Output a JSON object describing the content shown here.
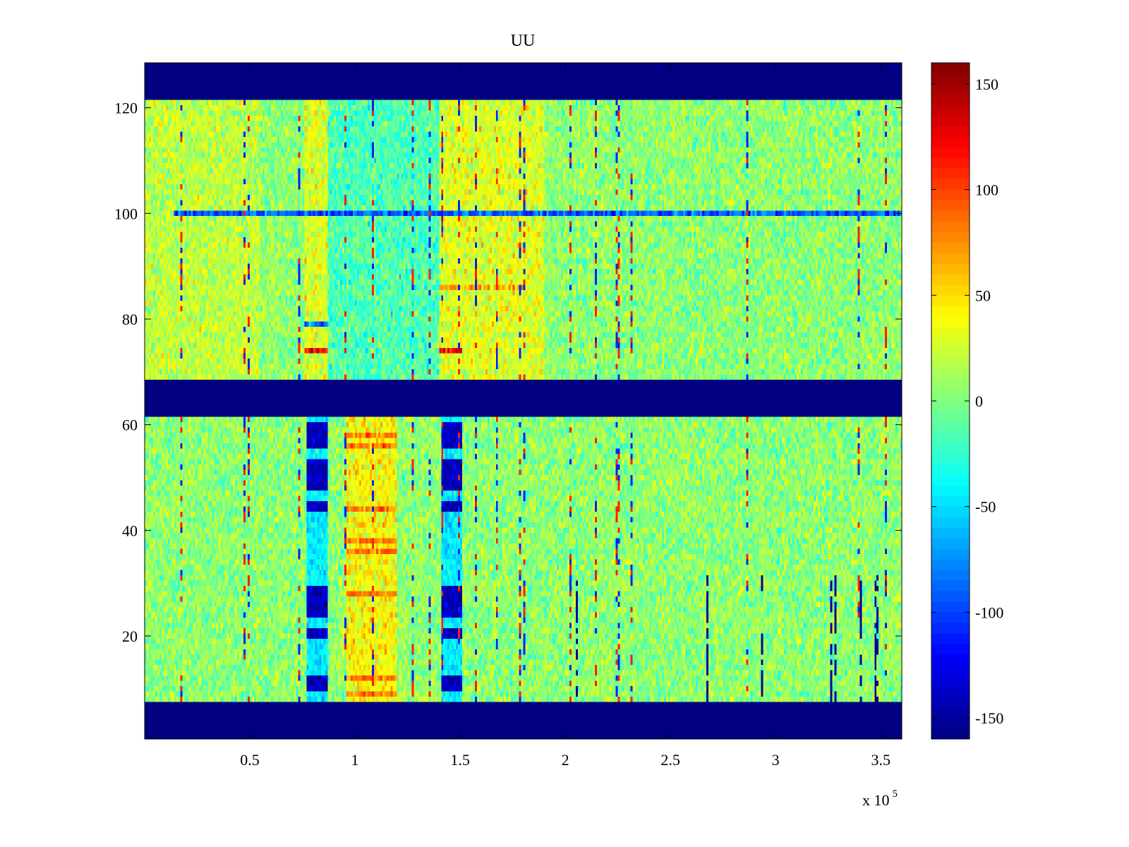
{
  "chart_data": {
    "type": "heatmap",
    "title": "UU",
    "xlabel": "",
    "ylabel": "",
    "x_multiplier_label": "x 10",
    "x_multiplier_exponent": "5",
    "x_scale": 100000,
    "xlim": [
      0,
      360000
    ],
    "ylim": [
      0.5,
      128.5
    ],
    "x_ticks": [
      50000,
      100000,
      150000,
      200000,
      250000,
      300000,
      350000
    ],
    "x_tick_labels": [
      "0.5",
      "1",
      "1.5",
      "2",
      "2.5",
      "3",
      "3.5"
    ],
    "y_ticks": [
      20,
      40,
      60,
      80,
      100,
      120
    ],
    "y_tick_labels": [
      "20",
      "40",
      "60",
      "80",
      "100",
      "120"
    ],
    "colormap": "jet",
    "clim": [
      -160,
      160
    ],
    "colorbar_ticks": [
      150,
      100,
      50,
      0,
      -50,
      -100,
      -150
    ],
    "colorbar_tick_labels": [
      "150",
      "100",
      "50",
      "0",
      "-50",
      "-100",
      "-150"
    ],
    "saturated_rows": [
      [
        1,
        7
      ],
      [
        62,
        68
      ],
      [
        122,
        128
      ]
    ],
    "saturated_value": -160,
    "upper_block": {
      "rows": [
        69,
        121
      ],
      "base_value": 5,
      "regions": [
        {
          "x": [
            0,
            55000
          ],
          "value": 20
        },
        {
          "x": [
            76000,
            87000
          ],
          "value": 30
        },
        {
          "x": [
            87000,
            140000
          ],
          "value": -15
        },
        {
          "x": [
            140000,
            190000
          ],
          "value": 30
        }
      ],
      "feature_rows": [
        {
          "row": 74,
          "x": [
            76000,
            87000
          ],
          "value": 120
        },
        {
          "row": 74,
          "x": [
            140000,
            151000
          ],
          "value": 120
        },
        {
          "row": 79,
          "x": [
            76000,
            87000
          ],
          "value": -80
        },
        {
          "row": 86,
          "x": [
            140000,
            180000
          ],
          "value": 60
        },
        {
          "row": 100,
          "x": [
            14000,
            360000
          ],
          "value": -90
        }
      ]
    },
    "lower_block": {
      "rows": [
        8,
        61
      ],
      "base_value": 5,
      "regions": [
        {
          "x": [
            96000,
            120000
          ],
          "value": 40
        }
      ],
      "blue_columns": [
        {
          "x": [
            77000,
            87000
          ],
          "rows": [
            [
              10,
              12
            ],
            [
              20,
              21
            ],
            [
              24,
              29
            ],
            [
              44,
              45
            ],
            [
              48,
              53
            ],
            [
              56,
              60
            ]
          ],
          "value": -140
        },
        {
          "x": [
            141000,
            151000
          ],
          "rows": [
            [
              10,
              12
            ],
            [
              20,
              21
            ],
            [
              24,
              29
            ],
            [
              44,
              45
            ],
            [
              48,
              53
            ],
            [
              56,
              60
            ]
          ],
          "value": -140
        }
      ],
      "red_rows": [
        {
          "x": [
            96000,
            120000
          ],
          "rows": [
            9,
            12,
            28,
            36,
            38,
            44,
            56,
            58
          ],
          "value": 80
        }
      ]
    }
  }
}
